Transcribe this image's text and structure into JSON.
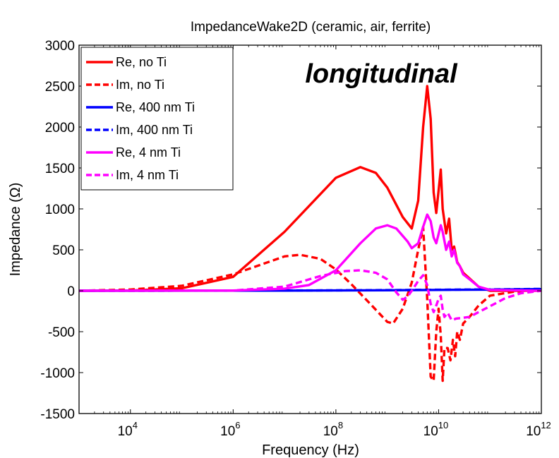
{
  "chart_data": {
    "type": "line",
    "title": "ImpedanceWake2D (ceramic, air, ferrite)",
    "xlabel": "Frequency (Hz)",
    "ylabel": "Impedance (Ω)",
    "annotation": "longitudinal",
    "xscale": "log",
    "xlim": [
      1000,
      1000000000000
    ],
    "ylim": [
      -1500,
      3000
    ],
    "xticks": [
      {
        "base": "10",
        "exp": "4",
        "value": 10000
      },
      {
        "base": "10",
        "exp": "6",
        "value": 1000000
      },
      {
        "base": "10",
        "exp": "8",
        "value": 100000000
      },
      {
        "base": "10",
        "exp": "10",
        "value": 10000000000
      },
      {
        "base": "10",
        "exp": "12",
        "value": 1000000000000
      }
    ],
    "yticks": [
      {
        "label": "3000",
        "value": 3000
      },
      {
        "label": "2500",
        "value": 2500
      },
      {
        "label": "2000",
        "value": 2000
      },
      {
        "label": "1500",
        "value": 1500
      },
      {
        "label": "1000",
        "value": 1000
      },
      {
        "label": "500",
        "value": 500
      },
      {
        "label": "0",
        "value": 0
      },
      {
        "label": "-500",
        "value": -500
      },
      {
        "label": "-1000",
        "value": -1000
      },
      {
        "label": "-1500",
        "value": -1500
      }
    ],
    "grid": false,
    "legend_position": "top-left",
    "series": [
      {
        "name": "Re, no Ti",
        "color": "#ff0000",
        "dash": "solid",
        "points": [
          [
            1000,
            0
          ],
          [
            10000,
            3
          ],
          [
            100000,
            30
          ],
          [
            1000000,
            170
          ],
          [
            10000000,
            720
          ],
          [
            100000000,
            1380
          ],
          [
            300000000,
            1510
          ],
          [
            600000000,
            1440
          ],
          [
            1000000000,
            1260
          ],
          [
            2000000000,
            900
          ],
          [
            3000000000,
            760
          ],
          [
            4000000000,
            1100
          ],
          [
            5000000000,
            2000
          ],
          [
            6000000000,
            2500
          ],
          [
            7000000000,
            2100
          ],
          [
            8000000000,
            1200
          ],
          [
            9000000000,
            950
          ],
          [
            11000000000,
            1480
          ],
          [
            12000000000,
            1000
          ],
          [
            14000000000,
            700
          ],
          [
            16000000000,
            880
          ],
          [
            18000000000,
            500
          ],
          [
            20000000000,
            540
          ],
          [
            23000000000,
            350
          ],
          [
            26000000000,
            300
          ],
          [
            30000000000,
            220
          ],
          [
            40000000000,
            150
          ],
          [
            60000000000,
            50
          ],
          [
            100000000000,
            0
          ],
          [
            1000000000000,
            0
          ]
        ]
      },
      {
        "name": "Im, no Ti",
        "color": "#ff0000",
        "dash": "dashed",
        "points": [
          [
            1000,
            0
          ],
          [
            10000,
            15
          ],
          [
            100000,
            60
          ],
          [
            1000000,
            200
          ],
          [
            10000000,
            420
          ],
          [
            20000000,
            440
          ],
          [
            50000000,
            390
          ],
          [
            100000000,
            260
          ],
          [
            200000000,
            80
          ],
          [
            500000000,
            -180
          ],
          [
            1000000000,
            -380
          ],
          [
            1300000000,
            -400
          ],
          [
            2000000000,
            -220
          ],
          [
            3000000000,
            100
          ],
          [
            4000000000,
            500
          ],
          [
            5000000000,
            780
          ],
          [
            6000000000,
            -100
          ],
          [
            7000000000,
            -1050
          ],
          [
            8000000000,
            -1100
          ],
          [
            9000000000,
            -500
          ],
          [
            10000000000,
            -220
          ],
          [
            11000000000,
            -550
          ],
          [
            12000000000,
            -1100
          ],
          [
            13000000000,
            -700
          ],
          [
            15000000000,
            -700
          ],
          [
            17000000000,
            -850
          ],
          [
            19000000000,
            -600
          ],
          [
            21000000000,
            -800
          ],
          [
            23000000000,
            -500
          ],
          [
            26000000000,
            -600
          ],
          [
            30000000000,
            -400
          ],
          [
            40000000000,
            -320
          ],
          [
            60000000000,
            -180
          ],
          [
            100000000000,
            -60
          ],
          [
            300000000000,
            -10
          ],
          [
            1000000000000,
            0
          ]
        ]
      },
      {
        "name": "Re, 400 nm Ti",
        "color": "#0000ff",
        "dash": "solid",
        "points": [
          [
            1000,
            0
          ],
          [
            10000000,
            2
          ],
          [
            1000000000,
            6
          ],
          [
            10000000000,
            10
          ],
          [
            100000000000,
            14
          ],
          [
            1000000000000,
            20
          ]
        ]
      },
      {
        "name": "Im, 400 nm Ti",
        "color": "#0000ff",
        "dash": "dashed",
        "points": [
          [
            1000,
            0
          ],
          [
            10000000,
            3
          ],
          [
            1000000000,
            8
          ],
          [
            10000000000,
            12
          ],
          [
            100000000000,
            16
          ],
          [
            1000000000000,
            22
          ]
        ]
      },
      {
        "name": "Re, 4 nm Ti",
        "color": "#ff00ff",
        "dash": "solid",
        "points": [
          [
            1000,
            0
          ],
          [
            1000000,
            3
          ],
          [
            10000000,
            25
          ],
          [
            30000000,
            70
          ],
          [
            100000000,
            250
          ],
          [
            300000000,
            580
          ],
          [
            600000000,
            760
          ],
          [
            1000000000,
            800
          ],
          [
            1500000000,
            760
          ],
          [
            2500000000,
            600
          ],
          [
            3000000000,
            520
          ],
          [
            4000000000,
            580
          ],
          [
            5000000000,
            780
          ],
          [
            6000000000,
            930
          ],
          [
            7000000000,
            850
          ],
          [
            8000000000,
            650
          ],
          [
            9000000000,
            580
          ],
          [
            11000000000,
            800
          ],
          [
            12000000000,
            720
          ],
          [
            14000000000,
            500
          ],
          [
            16000000000,
            600
          ],
          [
            18000000000,
            420
          ],
          [
            20000000000,
            500
          ],
          [
            23000000000,
            340
          ],
          [
            26000000000,
            300
          ],
          [
            30000000000,
            200
          ],
          [
            40000000000,
            140
          ],
          [
            60000000000,
            50
          ],
          [
            100000000000,
            10
          ],
          [
            1000000000000,
            0
          ]
        ]
      },
      {
        "name": "Im, 4 nm Ti",
        "color": "#ff00ff",
        "dash": "dashed",
        "points": [
          [
            1000,
            0
          ],
          [
            1000000,
            3
          ],
          [
            10000000,
            50
          ],
          [
            50000000,
            180
          ],
          [
            150000000,
            240
          ],
          [
            300000000,
            250
          ],
          [
            600000000,
            220
          ],
          [
            1000000000,
            140
          ],
          [
            1500000000,
            -20
          ],
          [
            2000000000,
            -110
          ],
          [
            2500000000,
            -70
          ],
          [
            3000000000,
            0
          ],
          [
            4000000000,
            120
          ],
          [
            5000000000,
            190
          ],
          [
            6000000000,
            70
          ],
          [
            7000000000,
            -160
          ],
          [
            8000000000,
            -260
          ],
          [
            9000000000,
            -180
          ],
          [
            10000000000,
            -100
          ],
          [
            11000000000,
            -60
          ],
          [
            12000000000,
            -230
          ],
          [
            13000000000,
            -320
          ],
          [
            15000000000,
            -270
          ],
          [
            18000000000,
            -360
          ],
          [
            22000000000,
            -340
          ],
          [
            30000000000,
            -330
          ],
          [
            40000000000,
            -320
          ],
          [
            60000000000,
            -260
          ],
          [
            100000000000,
            -190
          ],
          [
            200000000000,
            -90
          ],
          [
            400000000000,
            -30
          ],
          [
            1000000000000,
            0
          ]
        ]
      }
    ]
  }
}
